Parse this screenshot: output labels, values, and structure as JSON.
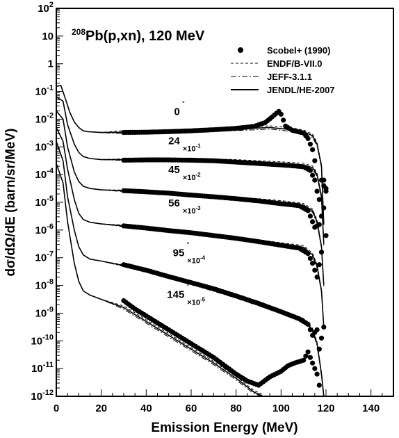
{
  "chart_data": {
    "type": "scatter",
    "title": {
      "superscript": "208",
      "main": "Pb(p,xn), 120 MeV"
    },
    "xlabel": "Emission Energy (MeV)",
    "ylabel": "dσ/dΩ/dE (barn/sr/MeV)",
    "xlim": [
      0,
      150
    ],
    "ylim_log10": [
      -12,
      2
    ],
    "log_y": true,
    "grid": false,
    "legend_position": "top-right",
    "x_ticks": [
      "0",
      "20",
      "40",
      "60",
      "80",
      "100",
      "120",
      "140"
    ],
    "y_ticks": [
      {
        "base": "10",
        "exp": "2"
      },
      {
        "base": "10",
        "exp": ""
      },
      {
        "base": "1",
        "exp": ""
      },
      {
        "base": "10",
        "exp": "-1"
      },
      {
        "base": "10",
        "exp": "-2"
      },
      {
        "base": "10",
        "exp": "-3"
      },
      {
        "base": "10",
        "exp": "-4"
      },
      {
        "base": "10",
        "exp": "-5"
      },
      {
        "base": "10",
        "exp": "-6"
      },
      {
        "base": "10",
        "exp": "-7"
      },
      {
        "base": "10",
        "exp": "-8"
      },
      {
        "base": "10",
        "exp": "-9"
      },
      {
        "base": "10",
        "exp": "-10"
      },
      {
        "base": "10",
        "exp": "-11"
      },
      {
        "base": "10",
        "exp": "-12"
      }
    ],
    "legend": [
      {
        "label": "Scobel+ (1990)",
        "style": "marker"
      },
      {
        "label": "ENDF/B-VII.0",
        "style": "dashed"
      },
      {
        "label": "JEFF-3.1.1",
        "style": "dashdot"
      },
      {
        "label": "JENDL/HE-2007",
        "style": "solid"
      }
    ],
    "angles": [
      {
        "angle": "0",
        "deg": "°",
        "scale": "",
        "scale_exp": "",
        "label_x": 55,
        "label_logy": -1.85,
        "exp_points": [
          [
            30,
            -2.48
          ],
          [
            40,
            -2.47
          ],
          [
            50,
            -2.45
          ],
          [
            60,
            -2.42
          ],
          [
            70,
            -2.38
          ],
          [
            80,
            -2.33
          ],
          [
            88,
            -2.26
          ],
          [
            93,
            -2.12
          ],
          [
            96,
            -1.92
          ],
          [
            98,
            -1.78
          ],
          [
            99,
            -1.72
          ],
          [
            100,
            -1.82
          ],
          [
            102,
            -2.25
          ],
          [
            105,
            -2.4
          ],
          [
            108,
            -2.46
          ],
          [
            110,
            -2.5
          ],
          [
            112,
            -2.7
          ],
          [
            114,
            -3.1
          ],
          [
            115,
            -3.5
          ]
        ],
        "eval_points": [
          [
            0,
            -0.82
          ],
          [
            2,
            -0.78
          ],
          [
            4,
            -1.25
          ],
          [
            6,
            -1.75
          ],
          [
            8,
            -2.1
          ],
          [
            10,
            -2.3
          ],
          [
            12,
            -2.42
          ],
          [
            14,
            -2.45
          ],
          [
            20,
            -2.48
          ],
          [
            30,
            -2.47
          ],
          [
            40,
            -2.46
          ],
          [
            60,
            -2.42
          ],
          [
            80,
            -2.35
          ],
          [
            95,
            -2.3
          ],
          [
            105,
            -2.38
          ],
          [
            110,
            -2.45
          ],
          [
            114,
            -2.6
          ],
          [
            116,
            -2.9
          ],
          [
            118,
            -3.7
          ],
          [
            119,
            -5.8
          ]
        ]
      },
      {
        "angle": "24",
        "deg": "°",
        "scale": "×10",
        "scale_exp": "-1",
        "label_x": 55,
        "label_logy": -2.9,
        "exp_points": [
          [
            30,
            -3.48
          ],
          [
            40,
            -3.47
          ],
          [
            50,
            -3.47
          ],
          [
            60,
            -3.48
          ],
          [
            70,
            -3.5
          ],
          [
            80,
            -3.55
          ],
          [
            90,
            -3.6
          ],
          [
            100,
            -3.65
          ],
          [
            105,
            -3.68
          ],
          [
            110,
            -3.72
          ],
          [
            113,
            -3.85
          ],
          [
            115,
            -4.2
          ],
          [
            116,
            -4.6
          ],
          [
            117,
            -4.9
          ],
          [
            118,
            -4.2
          ],
          [
            120,
            -4.6
          ]
        ],
        "eval_points": [
          [
            0,
            -1.2
          ],
          [
            3,
            -1.35
          ],
          [
            5,
            -2.2
          ],
          [
            8,
            -2.9
          ],
          [
            10,
            -3.2
          ],
          [
            12,
            -3.35
          ],
          [
            15,
            -3.42
          ],
          [
            20,
            -3.46
          ],
          [
            40,
            -3.46
          ],
          [
            60,
            -3.47
          ],
          [
            80,
            -3.52
          ],
          [
            100,
            -3.6
          ],
          [
            110,
            -3.65
          ],
          [
            114,
            -3.75
          ],
          [
            116,
            -4.0
          ],
          [
            118,
            -4.8
          ],
          [
            119,
            -6.5
          ]
        ]
      },
      {
        "angle": "45",
        "deg": "°",
        "scale": "×10",
        "scale_exp": "-2",
        "label_x": 55,
        "label_logy": -3.95,
        "exp_points": [
          [
            30,
            -4.58
          ],
          [
            40,
            -4.62
          ],
          [
            50,
            -4.67
          ],
          [
            60,
            -4.74
          ],
          [
            70,
            -4.8
          ],
          [
            80,
            -4.87
          ],
          [
            90,
            -4.95
          ],
          [
            100,
            -5.05
          ],
          [
            108,
            -5.12
          ],
          [
            112,
            -5.3
          ],
          [
            114,
            -5.7
          ],
          [
            115,
            -5.9
          ],
          [
            117,
            -5.8
          ],
          [
            118,
            -5.5
          ],
          [
            119,
            -4.2
          ],
          [
            120,
            -4.5
          ]
        ],
        "eval_points": [
          [
            0,
            -1.7
          ],
          [
            3,
            -2.0
          ],
          [
            5,
            -3.0
          ],
          [
            8,
            -3.9
          ],
          [
            10,
            -4.25
          ],
          [
            12,
            -4.42
          ],
          [
            15,
            -4.5
          ],
          [
            20,
            -4.55
          ],
          [
            40,
            -4.62
          ],
          [
            60,
            -4.73
          ],
          [
            80,
            -4.86
          ],
          [
            100,
            -5.0
          ],
          [
            110,
            -5.1
          ],
          [
            114,
            -5.3
          ],
          [
            116,
            -5.7
          ],
          [
            118,
            -6.6
          ],
          [
            119,
            -8.0
          ]
        ]
      },
      {
        "angle": "56",
        "deg": "°",
        "scale": "×10",
        "scale_exp": "-3",
        "label_x": 55,
        "label_logy": -5.15,
        "exp_points": [
          [
            30,
            -5.85
          ],
          [
            40,
            -5.93
          ],
          [
            50,
            -6.02
          ],
          [
            60,
            -6.1
          ],
          [
            70,
            -6.2
          ],
          [
            80,
            -6.3
          ],
          [
            90,
            -6.42
          ],
          [
            100,
            -6.55
          ],
          [
            108,
            -6.65
          ],
          [
            112,
            -6.85
          ],
          [
            114,
            -7.2
          ],
          [
            116,
            -7.7
          ],
          [
            118,
            -6.8
          ],
          [
            119,
            -5.2
          ],
          [
            120,
            -6.2
          ]
        ],
        "eval_points": [
          [
            0,
            -2.3
          ],
          [
            3,
            -2.8
          ],
          [
            5,
            -3.8
          ],
          [
            8,
            -4.9
          ],
          [
            10,
            -5.4
          ],
          [
            12,
            -5.62
          ],
          [
            15,
            -5.72
          ],
          [
            20,
            -5.78
          ],
          [
            40,
            -5.92
          ],
          [
            60,
            -6.1
          ],
          [
            80,
            -6.3
          ],
          [
            100,
            -6.52
          ],
          [
            110,
            -6.62
          ],
          [
            114,
            -6.9
          ],
          [
            116,
            -7.3
          ],
          [
            118,
            -8.2
          ],
          [
            119,
            -9.5
          ]
        ]
      },
      {
        "angle": "95",
        "deg": "°",
        "scale": "×10",
        "scale_exp": "-4",
        "label_x": 57,
        "label_logy": -6.95,
        "exp_points": [
          [
            30,
            -7.25
          ],
          [
            40,
            -7.45
          ],
          [
            50,
            -7.68
          ],
          [
            60,
            -7.9
          ],
          [
            70,
            -8.12
          ],
          [
            80,
            -8.38
          ],
          [
            90,
            -8.65
          ],
          [
            100,
            -8.95
          ],
          [
            108,
            -9.2
          ],
          [
            112,
            -9.4
          ],
          [
            114,
            -9.8
          ],
          [
            116,
            -9.6
          ],
          [
            117,
            -10.3
          ],
          [
            119,
            -9.5
          ]
        ],
        "eval_points": [
          [
            0,
            -2.8
          ],
          [
            3,
            -3.5
          ],
          [
            5,
            -4.8
          ],
          [
            8,
            -6.0
          ],
          [
            10,
            -6.6
          ],
          [
            12,
            -6.9
          ],
          [
            15,
            -7.05
          ],
          [
            20,
            -7.12
          ],
          [
            40,
            -7.45
          ],
          [
            60,
            -7.9
          ],
          [
            80,
            -8.4
          ],
          [
            100,
            -8.95
          ],
          [
            110,
            -9.25
          ],
          [
            114,
            -9.6
          ],
          [
            116,
            -10.1
          ],
          [
            118,
            -11.2
          ],
          [
            119,
            -12.0
          ]
        ]
      },
      {
        "angle": "145",
        "deg": "°",
        "scale": "×10",
        "scale_exp": "-5",
        "label_x": 57,
        "label_logy": -8.45,
        "exp_points": [
          [
            30,
            -8.55
          ],
          [
            35,
            -8.85
          ],
          [
            40,
            -9.1
          ],
          [
            45,
            -9.35
          ],
          [
            50,
            -9.6
          ],
          [
            55,
            -9.85
          ],
          [
            60,
            -10.1
          ],
          [
            65,
            -10.35
          ],
          [
            70,
            -10.6
          ],
          [
            75,
            -10.9
          ],
          [
            80,
            -11.2
          ],
          [
            85,
            -11.45
          ],
          [
            90,
            -11.6
          ],
          [
            95,
            -11.3
          ],
          [
            100,
            -11.1
          ],
          [
            103,
            -10.9
          ],
          [
            106,
            -10.8
          ],
          [
            110,
            -10.7
          ],
          [
            112,
            -10.4
          ],
          [
            114,
            -10.8
          ],
          [
            116,
            -11.2
          ],
          [
            117,
            -11.6
          ]
        ],
        "eval_points": [
          [
            0,
            -3.6
          ],
          [
            3,
            -4.3
          ],
          [
            5,
            -5.7
          ],
          [
            8,
            -7.2
          ],
          [
            10,
            -7.85
          ],
          [
            12,
            -8.2
          ],
          [
            15,
            -8.35
          ],
          [
            20,
            -8.5
          ],
          [
            30,
            -8.8
          ],
          [
            40,
            -9.3
          ],
          [
            50,
            -9.8
          ],
          [
            60,
            -10.3
          ],
          [
            70,
            -10.8
          ],
          [
            80,
            -11.35
          ],
          [
            88,
            -11.85
          ],
          [
            92,
            -12.0
          ]
        ]
      }
    ]
  }
}
